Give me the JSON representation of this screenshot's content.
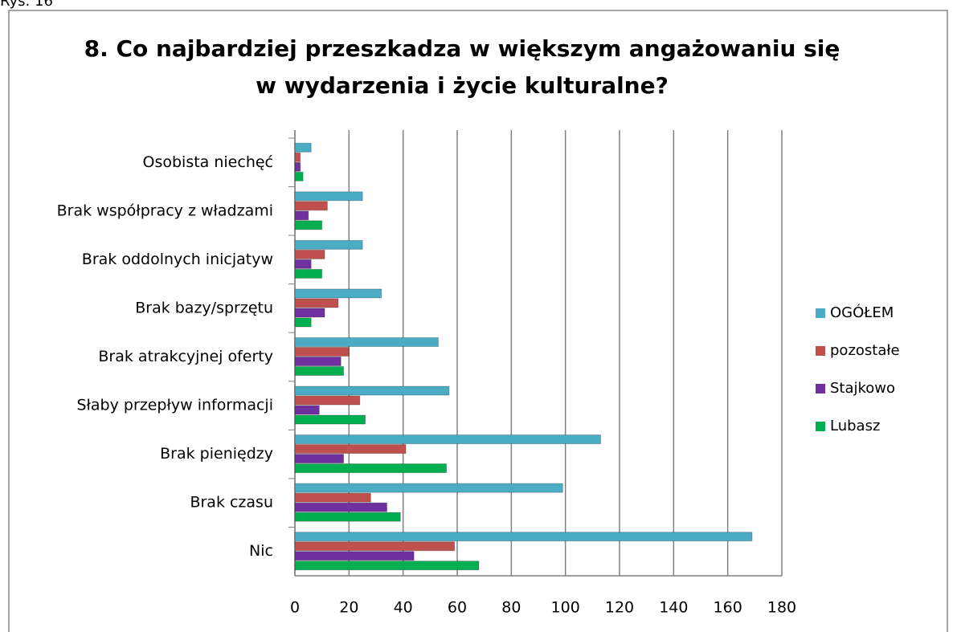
{
  "caption": "Rys. 16",
  "chart_data": {
    "type": "barh",
    "title": "8. Co najbardziej przeszkadza w większym angażowaniu się",
    "subtitle": "w wydarzenia i życie kulturalne?",
    "categories": [
      "Nic",
      "Brak czasu",
      "Brak pieniędzy",
      "Słaby przepływ informacji",
      "Brak atrakcyjnej oferty",
      "Brak bazy/sprzętu",
      "Brak oddolnych inicjatyw",
      "Brak współpracy z władzami",
      "Osobista niechęć"
    ],
    "series": [
      {
        "name": "OGÓŁEM",
        "color": "#4bacc6",
        "values": [
          169,
          99,
          113,
          57,
          53,
          32,
          25,
          25,
          6
        ]
      },
      {
        "name": "pozostałe",
        "color": "#c0504d",
        "values": [
          59,
          28,
          41,
          24,
          20,
          16,
          11,
          12,
          2
        ]
      },
      {
        "name": "Stajkowo",
        "color": "#7030a0",
        "values": [
          44,
          34,
          18,
          9,
          17,
          11,
          6,
          5,
          2
        ]
      },
      {
        "name": "Lubasz",
        "color": "#00b050",
        "values": [
          68,
          39,
          56,
          26,
          18,
          6,
          10,
          10,
          3
        ]
      }
    ],
    "xlim": [
      0,
      180
    ],
    "xticks": [
      0,
      20,
      40,
      60,
      80,
      100,
      120,
      140,
      160,
      180
    ],
    "grid": true,
    "legend": "right"
  }
}
